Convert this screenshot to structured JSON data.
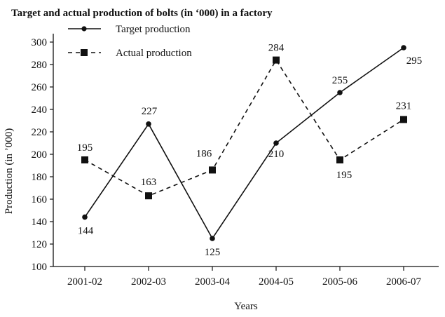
{
  "chart_data": {
    "type": "line",
    "title": "Target and actual production of bolts (in ‘000) in a factory",
    "xlabel": "Years",
    "ylabel": "Production (in ’000)",
    "categories": [
      "2001-02",
      "2002-03",
      "2003-04",
      "2004-05",
      "2005-06",
      "2006-07"
    ],
    "ylim": [
      100,
      300
    ],
    "yticks": [
      100,
      120,
      140,
      160,
      180,
      200,
      220,
      240,
      260,
      280,
      300
    ],
    "grid": false,
    "legend_position": "top-left",
    "series": [
      {
        "name": "Target production",
        "style": "solid",
        "marker": "circle",
        "color": "#111111",
        "values": [
          144,
          227,
          125,
          210,
          255,
          295
        ]
      },
      {
        "name": "Actual production",
        "style": "dashed",
        "marker": "square",
        "color": "#111111",
        "values": [
          195,
          163,
          186,
          284,
          195,
          231
        ]
      }
    ]
  }
}
